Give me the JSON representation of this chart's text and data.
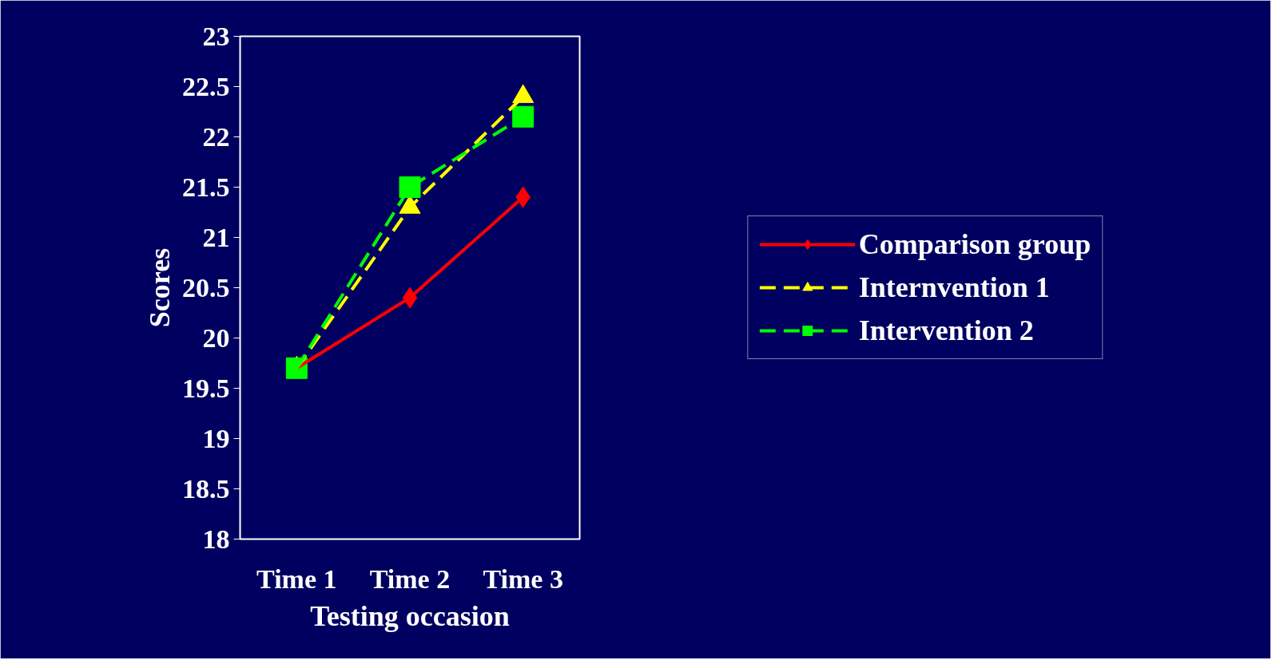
{
  "chart_data": {
    "type": "line",
    "xlabel": "Testing occasion",
    "ylabel": "Scores",
    "categories": [
      "Time 1",
      "Time 2",
      "Time 3"
    ],
    "series": [
      {
        "name": "Comparison group",
        "color": "#ff0000",
        "values": [
          19.7,
          20.4,
          21.4
        ],
        "marker": "diamond",
        "line_style": "solid"
      },
      {
        "name": "Internvention 1",
        "color": "#ffff00",
        "values": [
          19.7,
          21.3,
          22.4
        ],
        "marker": "triangle",
        "line_style": "dashed"
      },
      {
        "name": "Intervention 2",
        "color": "#00ff00",
        "values": [
          19.7,
          21.5,
          22.2
        ],
        "marker": "square",
        "line_style": "dashed"
      }
    ],
    "ylim": [
      18,
      23
    ],
    "yticks": [
      18,
      18.5,
      19,
      19.5,
      20,
      20.5,
      21,
      21.5,
      22,
      22.5,
      23
    ],
    "grid": false,
    "legend": "right"
  }
}
